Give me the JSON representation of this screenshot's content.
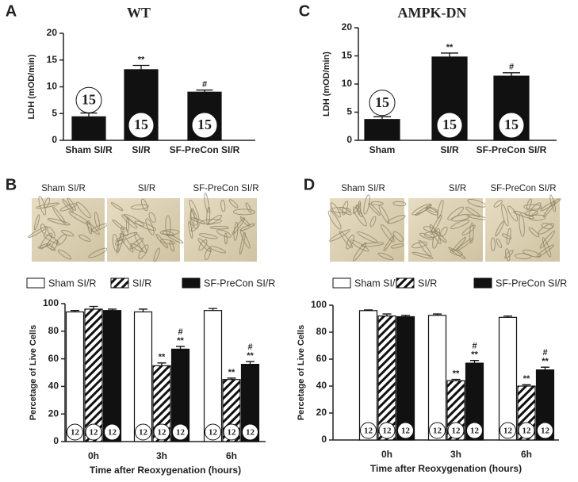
{
  "chart_data": [
    {
      "type": "bar",
      "panel_label": "A",
      "title": "WT",
      "y_label": "LDH (mOD/min)",
      "categories": [
        "Sham SI/R",
        "SI/R",
        "SF-PreCon SI/R"
      ],
      "values": [
        4.4,
        13.2,
        9.0
      ],
      "errors": [
        0.7,
        0.8,
        0.4
      ],
      "annotations": [
        [],
        [
          "**"
        ],
        [
          "#"
        ]
      ],
      "n": [
        15,
        15,
        15
      ],
      "color": "#111111",
      "ylim": [
        0,
        20
      ],
      "yticks": [
        0,
        5,
        10,
        15,
        20
      ]
    },
    {
      "type": "bar",
      "panel_label": "C",
      "title": "AMPK-DN",
      "y_label": "LDH (mOD/min)",
      "categories": [
        "Sham",
        "SI/R",
        "SF-PreCon SI/R"
      ],
      "values": [
        3.7,
        14.8,
        11.4
      ],
      "errors": [
        0.5,
        0.7,
        0.6
      ],
      "annotations": [
        [],
        [
          "**"
        ],
        [
          "#"
        ]
      ],
      "n": [
        15,
        15,
        15
      ],
      "color": "#111111",
      "ylim": [
        0,
        20
      ],
      "yticks": [
        0,
        5,
        10,
        15,
        20
      ]
    },
    {
      "type": "grouped_bar",
      "panel_label": "B",
      "image_captions": [
        "Sham SI/R",
        "SI/R",
        "SF-PreCon SI/R"
      ],
      "y_label": "Percetage of Live Cells",
      "x_label": "Time after Reoxygenation (hours)",
      "categories": [
        "0h",
        "3h",
        "6h"
      ],
      "series": [
        {
          "name": "Sham SI/R",
          "color": "#ffffff",
          "values": [
            94,
            94,
            95
          ],
          "errors": [
            1,
            2,
            1.5
          ],
          "annotations": [
            [],
            [],
            []
          ],
          "n": [
            12,
            12,
            12
          ]
        },
        {
          "name": "SI/R",
          "color": "#111111",
          "hatch": true,
          "values": [
            96,
            55,
            45
          ],
          "errors": [
            2,
            2,
            1
          ],
          "annotations": [
            [],
            [
              "**"
            ],
            [
              "**"
            ]
          ],
          "n": [
            12,
            12,
            12
          ]
        },
        {
          "name": "SF-PreCon SI/R",
          "color": "#111111",
          "values": [
            95,
            67,
            56
          ],
          "errors": [
            1,
            2,
            2
          ],
          "annotations": [
            [],
            [
              "#",
              "**"
            ],
            [
              "#",
              "**"
            ]
          ],
          "n": [
            12,
            12,
            12
          ]
        }
      ],
      "ylim": [
        0,
        100
      ],
      "yticks": [
        0,
        20,
        40,
        60,
        80,
        100
      ],
      "legend": "top"
    },
    {
      "type": "grouped_bar",
      "panel_label": "D",
      "image_captions": [
        "Sham SI/R",
        "SI/R",
        "SF-PreCon SI/R"
      ],
      "y_label": "Percetage of Live Cells",
      "x_label": "Time after Reoxygenation (hours)",
      "categories": [
        "0h",
        "3h",
        "6h"
      ],
      "series": [
        {
          "name": "Sham SI/R",
          "color": "#ffffff",
          "values": [
            96,
            92.5,
            91
          ],
          "errors": [
            0.5,
            1,
            1
          ],
          "annotations": [
            [],
            [],
            []
          ],
          "n": [
            12,
            12,
            12
          ]
        },
        {
          "name": "SI/R",
          "color": "#111111",
          "hatch": true,
          "values": [
            92,
            44,
            40
          ],
          "errors": [
            1.5,
            1,
            1
          ],
          "annotations": [
            [],
            [
              "**"
            ],
            [
              "**"
            ]
          ],
          "n": [
            12,
            12,
            12
          ]
        },
        {
          "name": "SF-PreCon SI/R",
          "color": "#111111",
          "values": [
            91.5,
            57,
            52
          ],
          "errors": [
            1,
            2,
            2
          ],
          "annotations": [
            [],
            [
              "#",
              "**"
            ],
            [
              "#",
              "**"
            ]
          ],
          "n": [
            12,
            12,
            12
          ]
        }
      ],
      "ylim": [
        0,
        100
      ],
      "yticks": [
        0,
        20,
        40,
        60,
        80,
        100
      ],
      "legend": "top"
    }
  ]
}
